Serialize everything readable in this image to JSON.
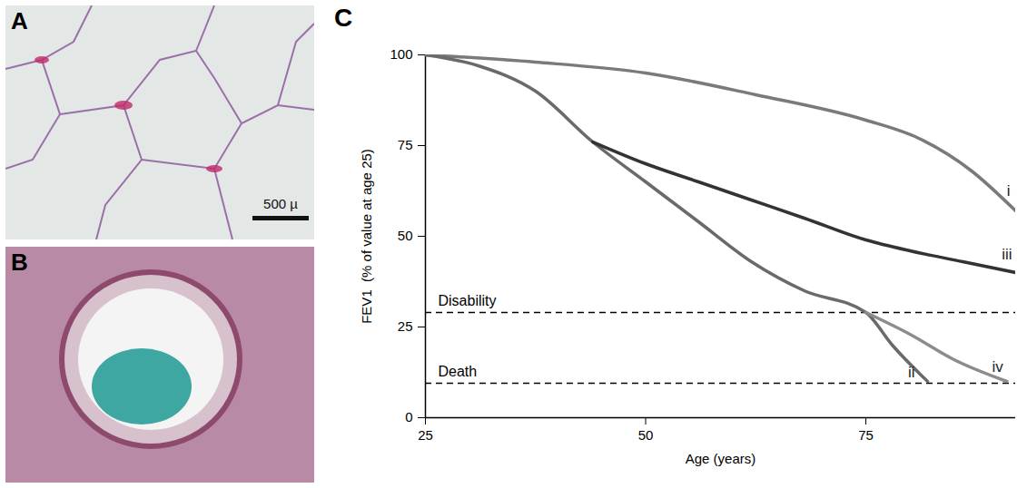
{
  "panels": {
    "A": {
      "label": "A",
      "scale_bar": "500 µ"
    },
    "B": {
      "label": "B"
    }
  },
  "chart_data": {
    "type": "line",
    "panel_label": "C",
    "x_label": "Age (years)",
    "y_label": "FEV1  (% of value at age 25)",
    "xlim": [
      25,
      92
    ],
    "xticks": [
      25,
      50,
      75
    ],
    "ylim": [
      0,
      100
    ],
    "yticks": [
      0,
      25,
      50,
      75,
      100
    ],
    "grid": false,
    "series": [
      {
        "name": "i",
        "color": "#7a7a7a",
        "line_style": "solid",
        "x": [
          25,
          37.5,
          50,
          62.5,
          75,
          81,
          87,
          92
        ],
        "values": [
          100,
          98,
          95,
          89,
          82,
          77,
          68,
          57
        ]
      },
      {
        "name": "ii",
        "color": "#6a6a6a",
        "line_style": "solid",
        "x": [
          25,
          31,
          37.5,
          44,
          50,
          56,
          62,
          68,
          75,
          78,
          82
        ],
        "values": [
          100,
          97,
          90,
          76,
          65,
          54,
          43,
          35,
          29,
          20,
          10
        ]
      },
      {
        "name": "iii",
        "color": "#333333",
        "line_style": "solid",
        "x": [
          44,
          50,
          56,
          62,
          68,
          75,
          80,
          86,
          92
        ],
        "values": [
          76,
          70,
          65,
          60,
          55,
          49,
          46,
          43,
          40
        ]
      },
      {
        "name": "iv",
        "color": "#8c8c8c",
        "line_style": "solid",
        "x": [
          75,
          80,
          85,
          91
        ],
        "values": [
          29,
          23,
          16,
          10
        ]
      }
    ],
    "reference_lines": [
      {
        "label": "Disability",
        "value": 29,
        "line_style": "dashed"
      },
      {
        "label": "Death",
        "value": 9.5,
        "line_style": "dashed"
      }
    ]
  }
}
